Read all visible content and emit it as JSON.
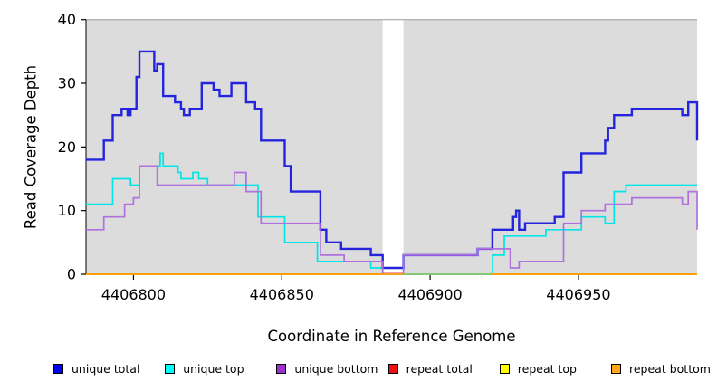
{
  "figure": {
    "background": "#ffffff",
    "panel_background": "#dcdcdc",
    "axis_color": "#000000"
  },
  "chart_data": {
    "type": "line",
    "subtype": "step-after-coverage-plot",
    "title": "",
    "xlabel": "Coordinate in Reference Genome",
    "ylabel": "Read Coverage Depth",
    "xlim": [
      4406784,
      4406990
    ],
    "ylim": [
      0,
      40
    ],
    "x_ticks": [
      "4406800",
      "4406850",
      "4406900",
      "4406950"
    ],
    "x_tick_values": [
      4406800,
      4406850,
      4406900,
      4406950
    ],
    "y_ticks": [
      "0",
      "10",
      "20",
      "30",
      "40"
    ],
    "y_tick_values": [
      0,
      10,
      20,
      30,
      40
    ],
    "grid": false,
    "legend_position": "bottom",
    "gap_region": {
      "x_start": 4406884,
      "x_end": 4406891,
      "fill": "#ffffff"
    },
    "series": [
      {
        "name": "unique total",
        "line_color": "#2424dd",
        "line_width": 2.4,
        "points": [
          [
            4406784,
            18
          ],
          [
            4406790,
            21
          ],
          [
            4406793,
            25
          ],
          [
            4406796,
            26
          ],
          [
            4406798,
            25
          ],
          [
            4406799,
            26
          ],
          [
            4406801,
            31
          ],
          [
            4406802,
            35
          ],
          [
            4406807,
            32
          ],
          [
            4406808,
            33
          ],
          [
            4406810,
            28
          ],
          [
            4406814,
            27
          ],
          [
            4406816,
            26
          ],
          [
            4406817,
            25
          ],
          [
            4406819,
            26
          ],
          [
            4406823,
            30
          ],
          [
            4406827,
            29
          ],
          [
            4406829,
            28
          ],
          [
            4406833,
            30
          ],
          [
            4406838,
            27
          ],
          [
            4406841,
            26
          ],
          [
            4406843,
            21
          ],
          [
            4406851,
            17
          ],
          [
            4406853,
            13
          ],
          [
            4406863,
            7
          ],
          [
            4406865,
            5
          ],
          [
            4406870,
            4
          ],
          [
            4406880,
            3
          ],
          [
            4406884,
            1
          ],
          [
            4406891,
            3
          ],
          [
            4406916,
            4
          ],
          [
            4406921,
            7
          ],
          [
            4406928,
            9
          ],
          [
            4406929,
            10
          ],
          [
            4406930,
            7
          ],
          [
            4406932,
            8
          ],
          [
            4406942,
            9
          ],
          [
            4406945,
            16
          ],
          [
            4406951,
            19
          ],
          [
            4406959,
            21
          ],
          [
            4406960,
            23
          ],
          [
            4406962,
            25
          ],
          [
            4406968,
            26
          ],
          [
            4406985,
            25
          ],
          [
            4406987,
            27
          ],
          [
            4406990,
            21
          ]
        ]
      },
      {
        "name": "unique top",
        "line_color": "#00e6e6",
        "line_width": 1.7,
        "points": [
          [
            4406784,
            11
          ],
          [
            4406793,
            15
          ],
          [
            4406799,
            14
          ],
          [
            4406802,
            17
          ],
          [
            4406809,
            19
          ],
          [
            4406810,
            17
          ],
          [
            4406815,
            16
          ],
          [
            4406816,
            15
          ],
          [
            4406820,
            16
          ],
          [
            4406822,
            15
          ],
          [
            4406825,
            14
          ],
          [
            4406842,
            9
          ],
          [
            4406851,
            5
          ],
          [
            4406862,
            2
          ],
          [
            4406880,
            1
          ],
          [
            4406884,
            0
          ],
          [
            4406921,
            3
          ],
          [
            4406925,
            6
          ],
          [
            4406939,
            7
          ],
          [
            4406951,
            9
          ],
          [
            4406959,
            8
          ],
          [
            4406962,
            13
          ],
          [
            4406966,
            14
          ],
          [
            4406990,
            14
          ]
        ]
      },
      {
        "name": "unique bottom",
        "line_color": "#b070dd",
        "line_width": 1.7,
        "points": [
          [
            4406784,
            7
          ],
          [
            4406790,
            9
          ],
          [
            4406797,
            11
          ],
          [
            4406800,
            12
          ],
          [
            4406802,
            17
          ],
          [
            4406808,
            14
          ],
          [
            4406834,
            16
          ],
          [
            4406838,
            13
          ],
          [
            4406843,
            8
          ],
          [
            4406863,
            3
          ],
          [
            4406871,
            2
          ],
          [
            4406884,
            0
          ],
          [
            4406891,
            3
          ],
          [
            4406916,
            4
          ],
          [
            4406927,
            1
          ],
          [
            4406930,
            2
          ],
          [
            4406945,
            8
          ],
          [
            4406951,
            10
          ],
          [
            4406959,
            11
          ],
          [
            4406968,
            12
          ],
          [
            4406985,
            11
          ],
          [
            4406987,
            13
          ],
          [
            4406990,
            7
          ]
        ]
      },
      {
        "name": "repeat total",
        "line_color": "#ee1111",
        "line_width": 1.4,
        "points": [
          [
            4406784,
            0
          ],
          [
            4406990,
            0
          ]
        ]
      },
      {
        "name": "repeat top",
        "line_color": "#ffff00",
        "line_width": 1.7,
        "points": [
          [
            4406784,
            0
          ],
          [
            4406990,
            0
          ]
        ]
      },
      {
        "name": "repeat bottom",
        "line_color": "#ffa500",
        "line_width": 1.8,
        "points": [
          [
            4406784,
            0
          ],
          [
            4406990,
            0
          ]
        ]
      }
    ],
    "overlay_segments": [
      {
        "name": "repeat-total-visible-in-gap",
        "color": "#e85f9e",
        "width": 1.4,
        "value": 0.3,
        "x_start": 4406884,
        "x_end": 4406891
      },
      {
        "name": "unique-top-repeat-top-overlap",
        "color": "#7ccd7c",
        "width": 1.8,
        "value": 0,
        "x_start": 4406891,
        "x_end": 4406921
      }
    ]
  },
  "legend": {
    "items": [
      {
        "label": "unique total",
        "swatch_color": "#0000ee"
      },
      {
        "label": "unique top",
        "swatch_color": "#00ffff"
      },
      {
        "label": "unique bottom",
        "swatch_color": "#9a32cd"
      },
      {
        "label": "repeat total",
        "swatch_color": "#ee1111"
      },
      {
        "label": "repeat top",
        "swatch_color": "#ffff00"
      },
      {
        "label": "repeat bottom",
        "swatch_color": "#ffa519"
      }
    ]
  }
}
